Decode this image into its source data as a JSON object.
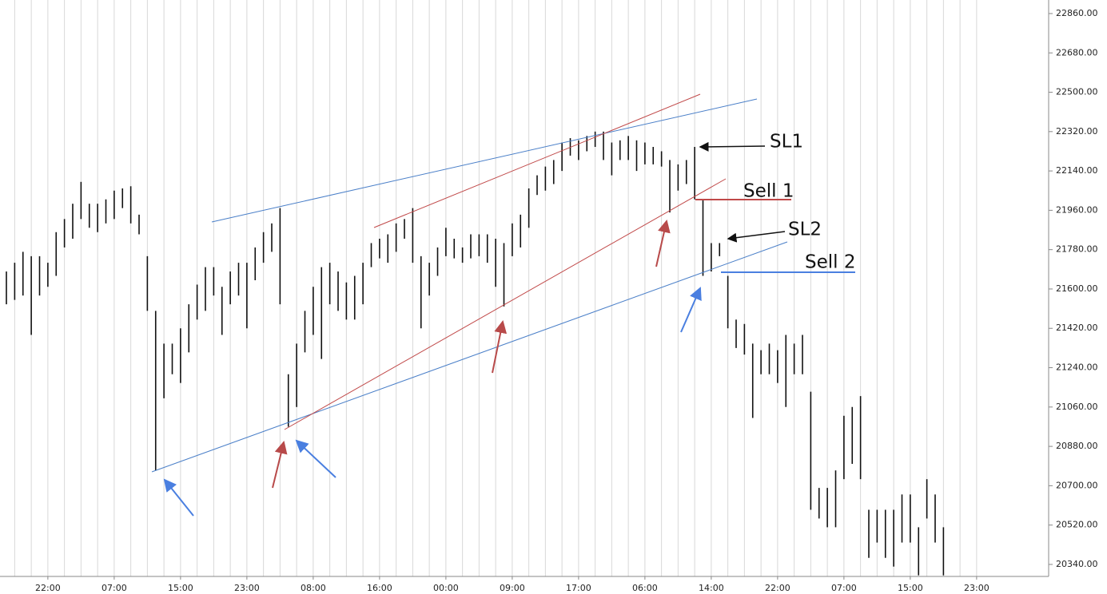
{
  "chart_data": {
    "type": "range",
    "categories": [
      null,
      null,
      null,
      null,
      null,
      "22:00",
      null,
      null,
      null,
      null,
      null,
      null,
      null,
      "07:00",
      null,
      null,
      null,
      null,
      null,
      null,
      null,
      "15:00",
      null,
      null,
      null,
      null,
      null,
      null,
      null,
      "23:00",
      null,
      null,
      null,
      null,
      null,
      null,
      null,
      "08:00",
      null,
      null,
      null,
      null,
      null,
      null,
      null,
      "16:00",
      null,
      null,
      null,
      null,
      null,
      null,
      null,
      "00:00",
      null,
      null,
      null,
      null,
      null,
      null,
      null,
      "09:00",
      null,
      null,
      null,
      null,
      null,
      null,
      null,
      "17:00",
      null,
      null,
      null,
      null,
      null,
      null,
      null,
      "06:00",
      null,
      null,
      null,
      null,
      null,
      null,
      null,
      "14:00",
      null,
      null,
      null,
      null,
      null,
      null,
      null,
      "22:00",
      null,
      null,
      null,
      null,
      null,
      null,
      null,
      "07:00",
      null,
      null,
      null,
      null,
      null,
      null,
      null,
      "15:00",
      null,
      null,
      null,
      null,
      null,
      null,
      null,
      "23:00"
    ],
    "high": [
      21680,
      21720,
      21770,
      21750,
      21750,
      21720,
      21860,
      21920,
      21990,
      22090,
      21990,
      21990,
      22010,
      22050,
      22060,
      22070,
      21940,
      21750,
      21500,
      21350,
      21350,
      21420,
      21530,
      21620,
      21700,
      21700,
      21610,
      21680,
      21720,
      21720,
      21790,
      21860,
      21900,
      21970,
      21210,
      21350,
      21500,
      21610,
      21700,
      21720,
      21680,
      21630,
      21660,
      21720,
      21810,
      21830,
      21850,
      21900,
      21920,
      21970,
      21750,
      21720,
      21790,
      21880,
      21830,
      21790,
      21850,
      21850,
      21850,
      21830,
      21810,
      21900,
      21940,
      22060,
      22120,
      22160,
      22190,
      22270,
      22290,
      22280,
      22300,
      22320,
      22320,
      22270,
      22280,
      22300,
      22280,
      22270,
      22250,
      22230,
      22190,
      22170,
      22190,
      22250,
      22010,
      21810,
      21810,
      21660,
      21460,
      21440,
      21350,
      21320,
      21350,
      21320,
      21390,
      21350,
      21390,
      21130,
      20690,
      20690,
      20770,
      21020,
      21060,
      21110,
      20590,
      20590,
      20590,
      20590,
      20660,
      20660,
      20510,
      20730,
      20660,
      20510,
      null,
      null,
      null,
      null
    ],
    "low": [
      21530,
      21550,
      21570,
      21390,
      21570,
      21610,
      21660,
      21790,
      21830,
      21920,
      21880,
      21860,
      21900,
      21920,
      21970,
      21900,
      21850,
      21500,
      20770,
      21100,
      21210,
      21170,
      21310,
      21460,
      21500,
      21570,
      21390,
      21530,
      21570,
      21420,
      21640,
      21720,
      21770,
      21530,
      20970,
      21060,
      21310,
      21390,
      21280,
      21530,
      21500,
      21460,
      21460,
      21530,
      21700,
      21740,
      21720,
      21770,
      21830,
      21720,
      21420,
      21570,
      21660,
      21750,
      21740,
      21720,
      21740,
      21750,
      21720,
      21610,
      21520,
      21750,
      21790,
      21880,
      22030,
      22050,
      22080,
      22140,
      22210,
      22190,
      22230,
      22250,
      22190,
      22120,
      22190,
      22190,
      22140,
      22170,
      22170,
      22160,
      21950,
      22050,
      22080,
      22010,
      21660,
      21680,
      21750,
      21420,
      21330,
      21300,
      21010,
      21210,
      21210,
      21170,
      21060,
      21210,
      21210,
      20590,
      20550,
      20510,
      20510,
      20730,
      20800,
      20730,
      20370,
      20440,
      20370,
      20330,
      20440,
      20440,
      20290,
      20550,
      20440,
      20290,
      null,
      null,
      null,
      null
    ],
    "color": "#111111",
    "ylim": [
      20285,
      22922
    ],
    "yticks": [
      {
        "value": 20340,
        "label": "20340.00"
      },
      {
        "value": 20520,
        "label": "20520.00"
      },
      {
        "value": 20700,
        "label": "20700.00"
      },
      {
        "value": 20880,
        "label": "20880.00"
      },
      {
        "value": 21060,
        "label": "21060.00"
      },
      {
        "value": 21240,
        "label": "21240.00"
      },
      {
        "value": 21420,
        "label": "21420.00"
      },
      {
        "value": 21600,
        "label": "21600.00"
      },
      {
        "value": 21780,
        "label": "21780.00"
      },
      {
        "value": 21960,
        "label": "21960.00"
      },
      {
        "value": 22140,
        "label": "22140.00"
      },
      {
        "value": 22320,
        "label": "22320.00"
      },
      {
        "value": 22500,
        "label": "22500.00"
      },
      {
        "value": 22680,
        "label": "22680.00"
      },
      {
        "value": 22860,
        "label": "22860.00"
      }
    ],
    "grid": true,
    "annotations": [
      "SL1",
      "Sell 1",
      "SL2",
      "Sell 2"
    ]
  }
}
